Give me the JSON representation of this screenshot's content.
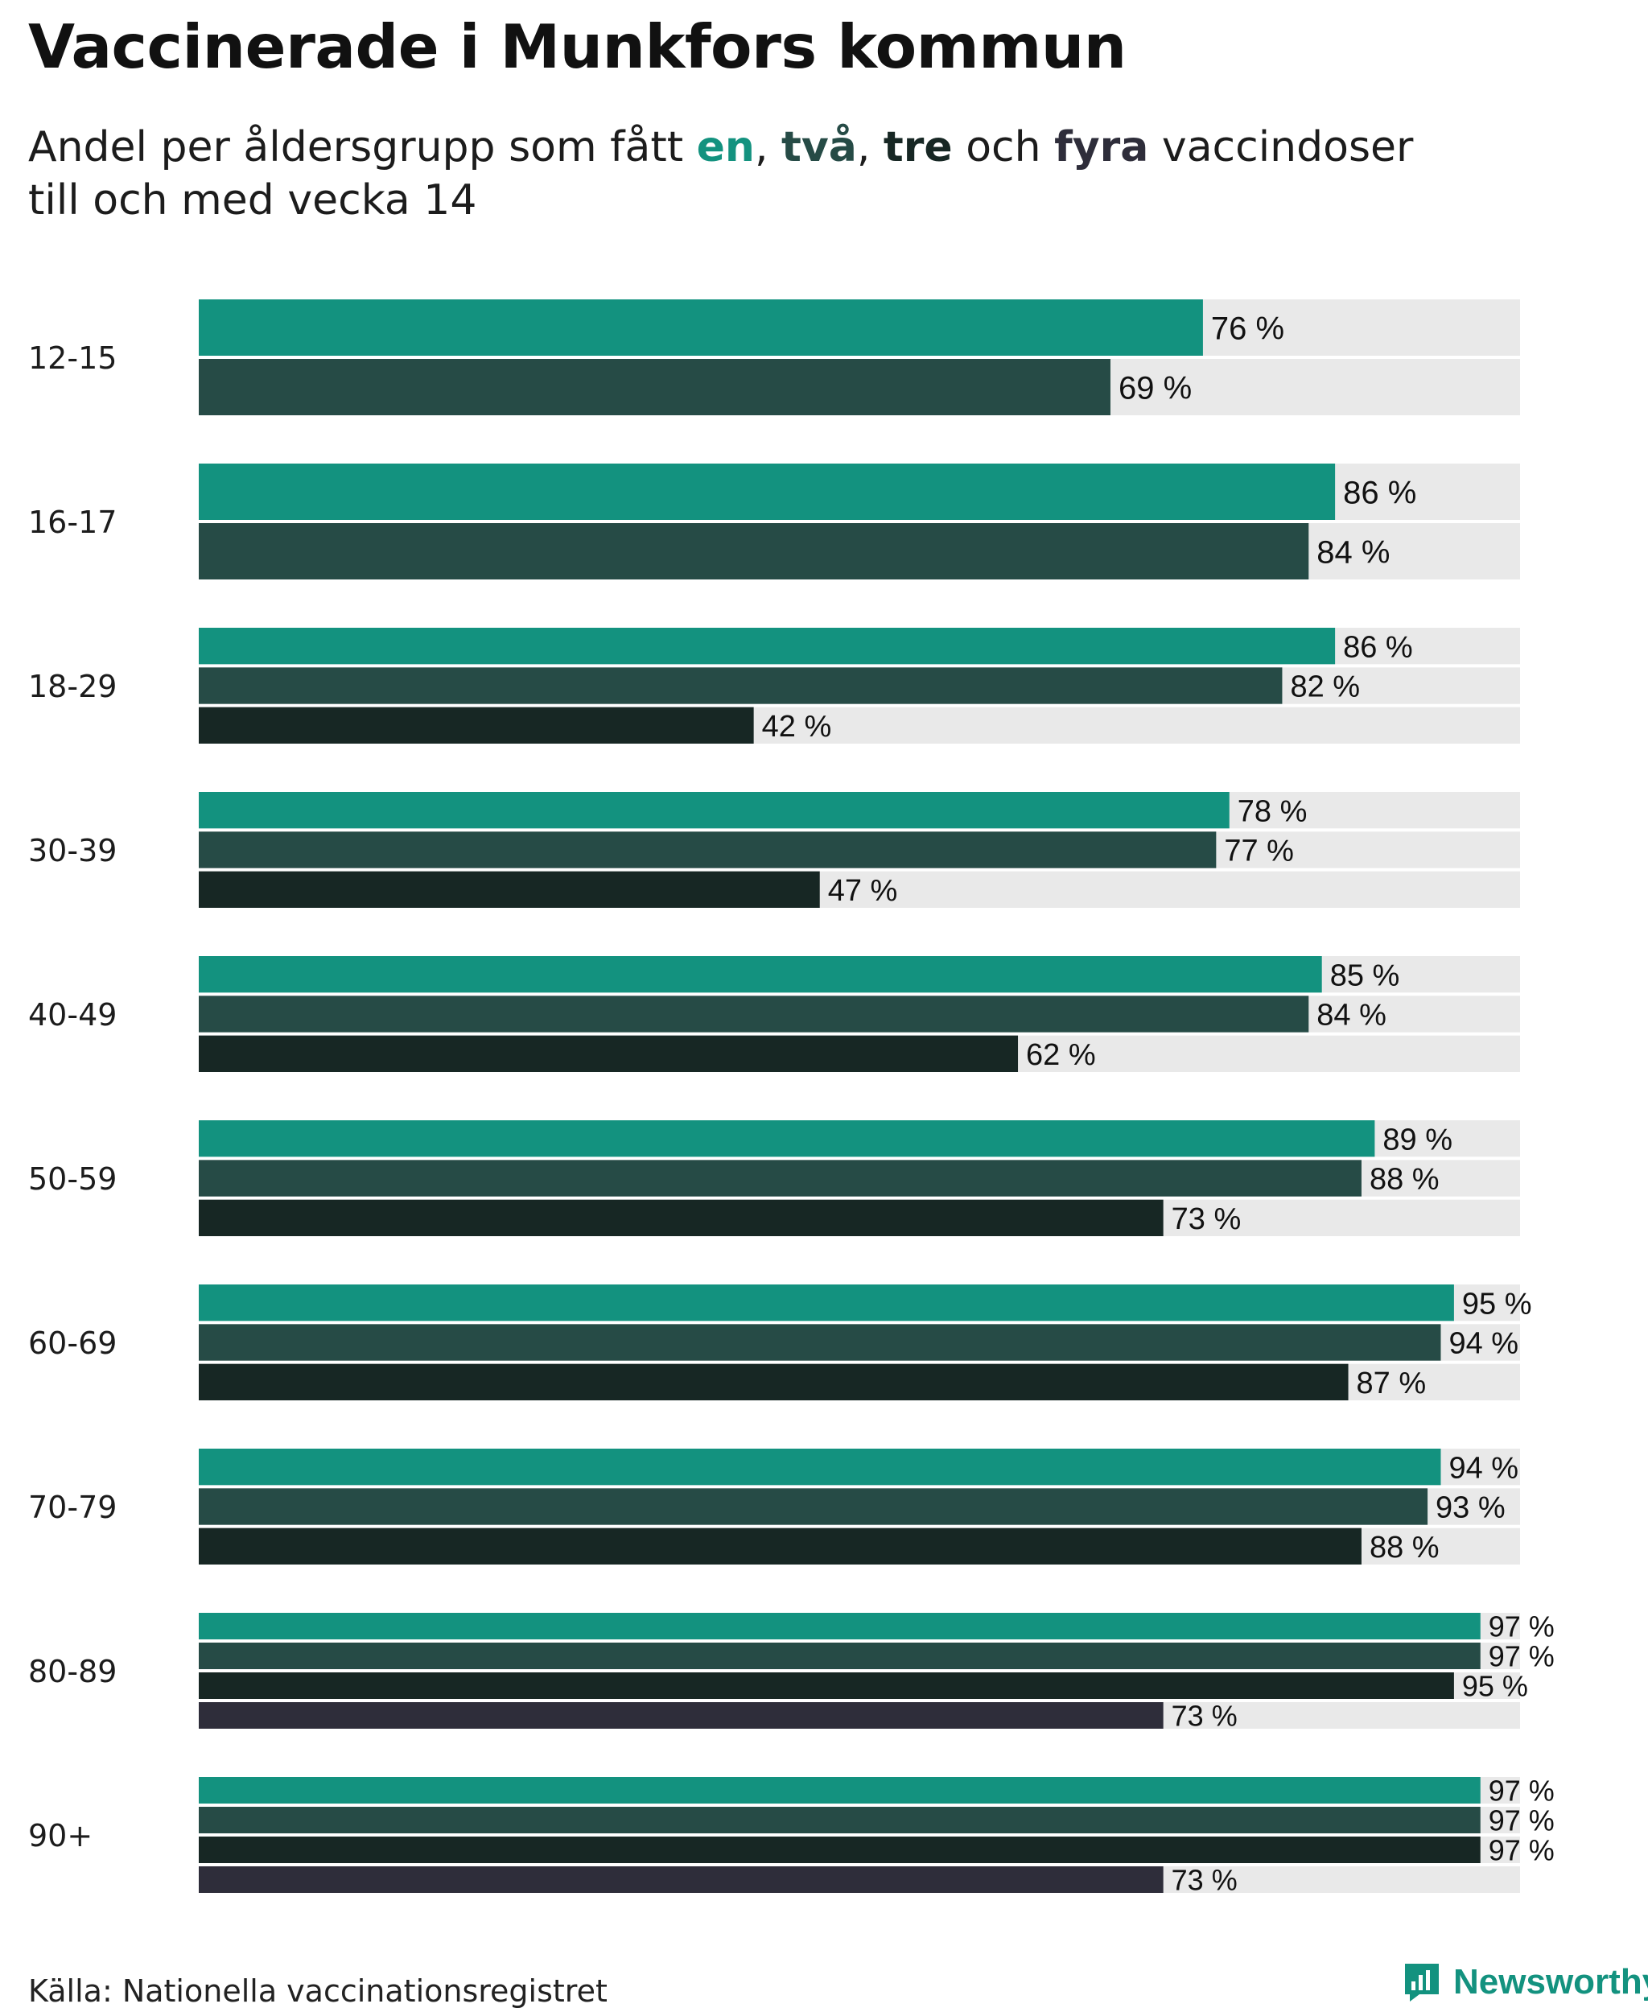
{
  "title": "Vaccinerade i Munkfors kommun",
  "subtitle": {
    "prefix": "Andel per åldersgrupp som fått ",
    "en": "en",
    "sep1": ", ",
    "tva": "två",
    "sep2": ", ",
    "tre": "tre",
    "och": " och ",
    "fyra": "fyra",
    "suffix": " vaccindoser",
    "line2": "till och med vecka 14"
  },
  "colors": {
    "dose1": "#13927f",
    "dose2": "#264b46",
    "dose3": "#172724",
    "dose4": "#2e2d3a",
    "track": "#e9e9e9",
    "brand": "#13927f"
  },
  "chart_data": {
    "type": "bar",
    "orientation": "horizontal",
    "xlim": [
      0,
      100
    ],
    "value_suffix": " %",
    "series_names": [
      "en",
      "två",
      "tre",
      "fyra"
    ],
    "groups": [
      {
        "label": "12-15",
        "values": [
          76,
          69
        ]
      },
      {
        "label": "16-17",
        "values": [
          86,
          84
        ]
      },
      {
        "label": "18-29",
        "values": [
          86,
          82,
          42
        ]
      },
      {
        "label": "30-39",
        "values": [
          78,
          77,
          47
        ]
      },
      {
        "label": "40-49",
        "values": [
          85,
          84,
          62
        ]
      },
      {
        "label": "50-59",
        "values": [
          89,
          88,
          73
        ]
      },
      {
        "label": "60-69",
        "values": [
          95,
          94,
          87
        ]
      },
      {
        "label": "70-79",
        "values": [
          94,
          93,
          88
        ]
      },
      {
        "label": "80-89",
        "values": [
          97,
          97,
          95,
          73
        ]
      },
      {
        "label": "90+",
        "values": [
          97,
          97,
          97,
          73
        ]
      }
    ]
  },
  "footer": {
    "source": "Källa: Nationella vaccinationsregistret",
    "brand": "Newsworthy",
    "logo_icon": "newsworthy-logo-icon"
  }
}
